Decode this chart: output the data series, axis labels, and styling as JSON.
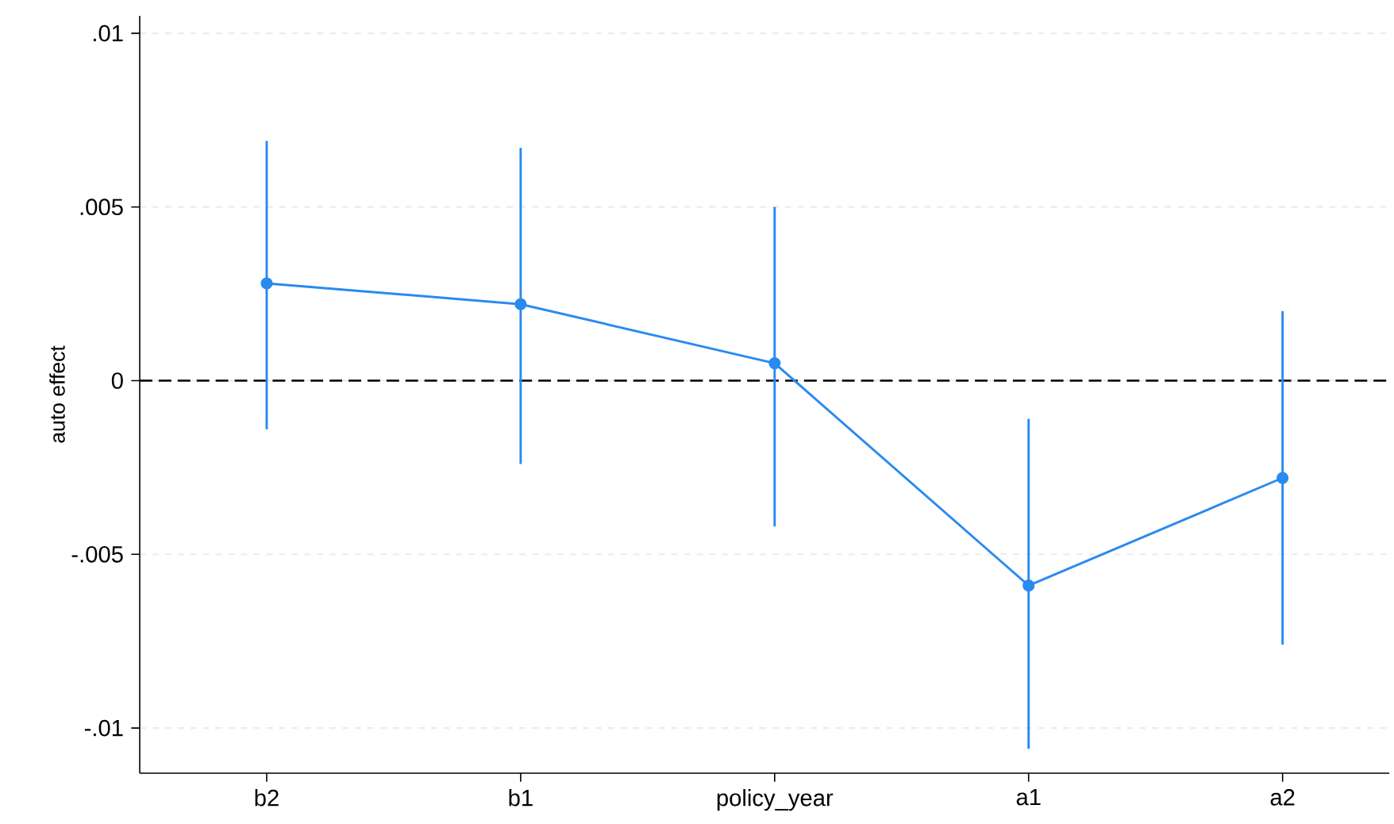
{
  "chart_data": {
    "type": "line",
    "ylabel": "auto effect",
    "categories": [
      "b2",
      "b1",
      "policy_year",
      "a1",
      "a2"
    ],
    "values": [
      0.0028,
      0.0022,
      0.0005,
      -0.0059,
      -0.0028
    ],
    "errors": [
      [
        -0.0014,
        0.0069
      ],
      [
        -0.0024,
        0.0067
      ],
      [
        -0.0042,
        0.005
      ],
      [
        -0.0106,
        -0.0011
      ],
      [
        -0.0076,
        0.002
      ]
    ],
    "color": "#2a8af0",
    "marker": "circle",
    "line_style": "solid",
    "ylim": [
      -0.0113,
      0.0105
    ],
    "yticks": [
      {
        "value": -0.01,
        "label": "-.01"
      },
      {
        "value": -0.005,
        "label": "-.005"
      },
      {
        "value": 0,
        "label": "0"
      },
      {
        "value": 0.005,
        "label": ".005"
      },
      {
        "value": 0.01,
        "label": ".01"
      }
    ],
    "grid": "y",
    "ref_lines": [
      {
        "axis": "y",
        "value": 0,
        "color": "#000000",
        "line_style": "dashed"
      }
    ]
  }
}
